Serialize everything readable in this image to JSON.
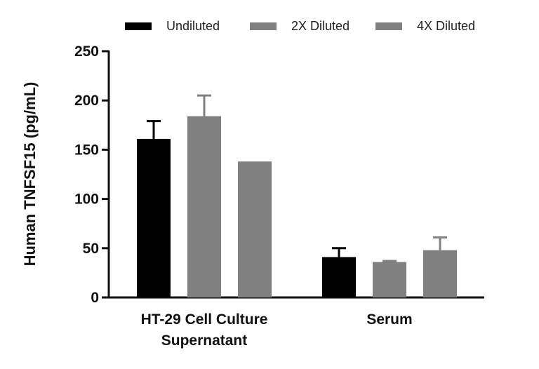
{
  "chart_data": {
    "type": "bar",
    "title": "",
    "xlabel": "",
    "ylabel": "Human TNFSF15 (pg/mL)",
    "ylim": [
      0,
      250
    ],
    "yticks": [
      0,
      50,
      100,
      150,
      200,
      250
    ],
    "grid": false,
    "legend_position": "top",
    "categories": [
      [
        "HT-29 Cell Culture",
        "Supernatant"
      ],
      [
        "Serum"
      ]
    ],
    "series": [
      {
        "name": "Undiluted",
        "color": "#000000",
        "values": [
          161,
          41
        ],
        "errors": [
          18,
          9
        ]
      },
      {
        "name": "2X Diluted",
        "color": "#808080",
        "values": [
          184,
          36
        ],
        "errors": [
          21,
          1
        ]
      },
      {
        "name": "4X Diluted",
        "color": "#808080",
        "values": [
          138,
          48
        ],
        "errors": [
          0,
          13
        ]
      }
    ]
  }
}
